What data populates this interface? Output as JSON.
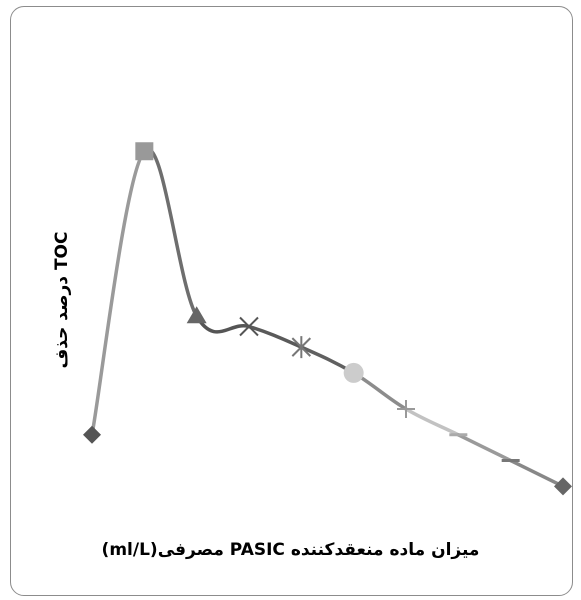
{
  "chart_data": {
    "type": "line",
    "title": "",
    "xlabel": "میزان ماده منعقدکننده PASIC مصرفی(ml/L)",
    "ylabel": "درصد حذف TOC",
    "grid": false,
    "legend": "none",
    "x": [
      1,
      2,
      3,
      4,
      5,
      6,
      7,
      8,
      9,
      10
    ],
    "y": [
      37,
      92,
      60,
      58,
      54,
      49,
      42,
      37,
      32,
      27
    ],
    "ylim": [
      0,
      100
    ],
    "markers": [
      "diamond",
      "square",
      "triangle",
      "x",
      "star",
      "circle",
      "plus",
      "dash",
      "dash",
      "diamond"
    ],
    "segment_colors": [
      "#9a9a9a",
      "#6e6e6e",
      "#555555",
      "#5a5a5a",
      "#606060",
      "#8c8c8c",
      "#c2c2c2",
      "#9a9a9a",
      "#888888"
    ],
    "marker_colors": [
      "#555555",
      "#999999",
      "#666666",
      "#555555",
      "#777777",
      "#cccccc",
      "#999999",
      "#aaaaaa",
      "#777777",
      "#666666"
    ]
  }
}
